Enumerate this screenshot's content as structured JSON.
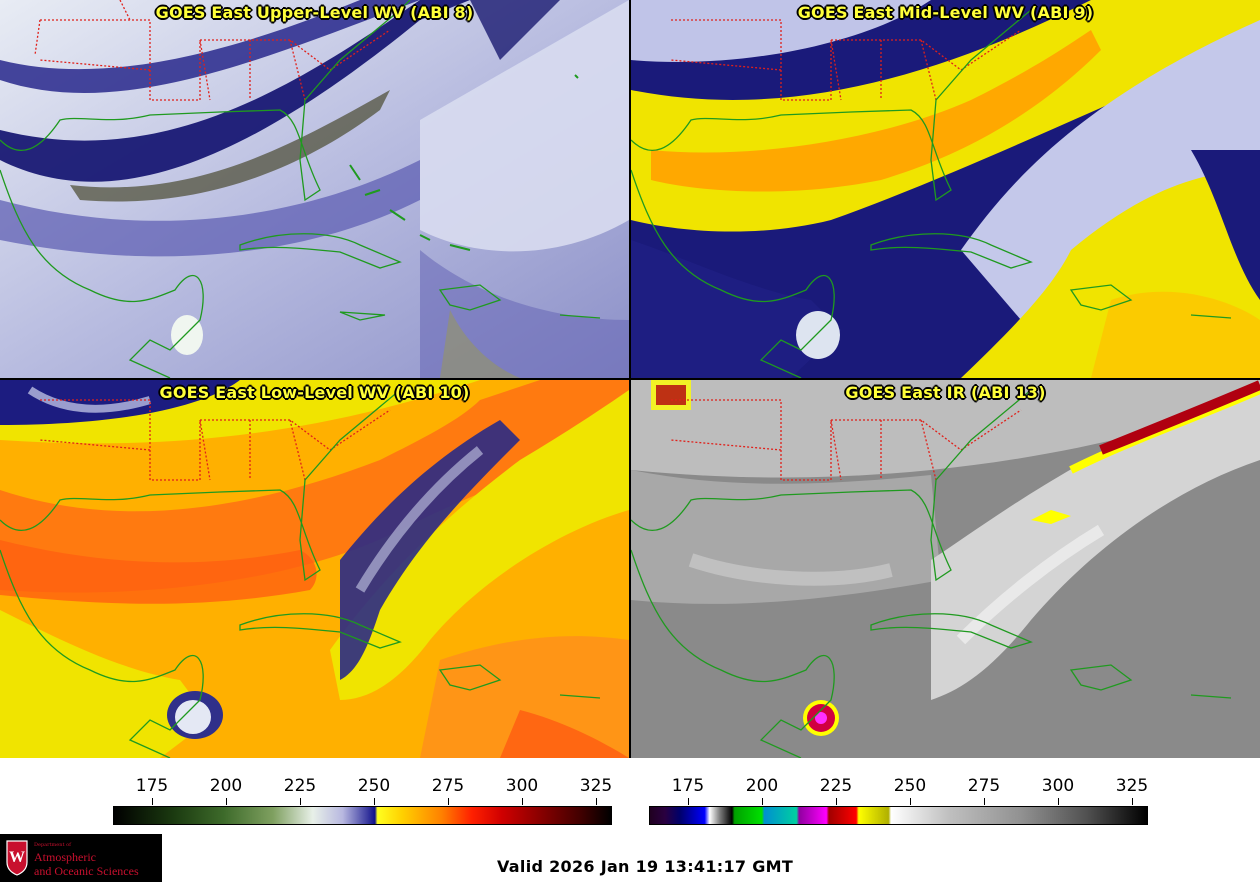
{
  "panels": [
    {
      "title": "GOES East Upper-Level WV (ABI 8)",
      "band": "ABI 8"
    },
    {
      "title": "GOES East Mid-Level WV (ABI 9)",
      "band": "ABI 9"
    },
    {
      "title": "GOES East Low-Level WV (ABI 10)",
      "band": "ABI 10"
    },
    {
      "title": "GOES East IR (ABI 13)",
      "band": "ABI 13"
    }
  ],
  "colorbars": {
    "wv": {
      "ticks": [
        "175",
        "200",
        "225",
        "250",
        "275",
        "300",
        "325"
      ],
      "range": [
        162,
        330
      ]
    },
    "ir": {
      "ticks": [
        "175",
        "200",
        "225",
        "250",
        "275",
        "300",
        "325"
      ],
      "range": [
        162,
        330
      ]
    }
  },
  "footer": {
    "valid_time": "Valid 2026 Jan 19 13:41:17 GMT",
    "logo_dept": "Department of",
    "logo_line1": "Atmospheric",
    "logo_line2": "and Oceanic Sciences",
    "logo_letter": "W"
  },
  "colors": {
    "title_text": "#ffff3a",
    "state_borders": "#e0201a",
    "coastlines": "#1f9a1f",
    "logo_red": "#c8102e"
  }
}
